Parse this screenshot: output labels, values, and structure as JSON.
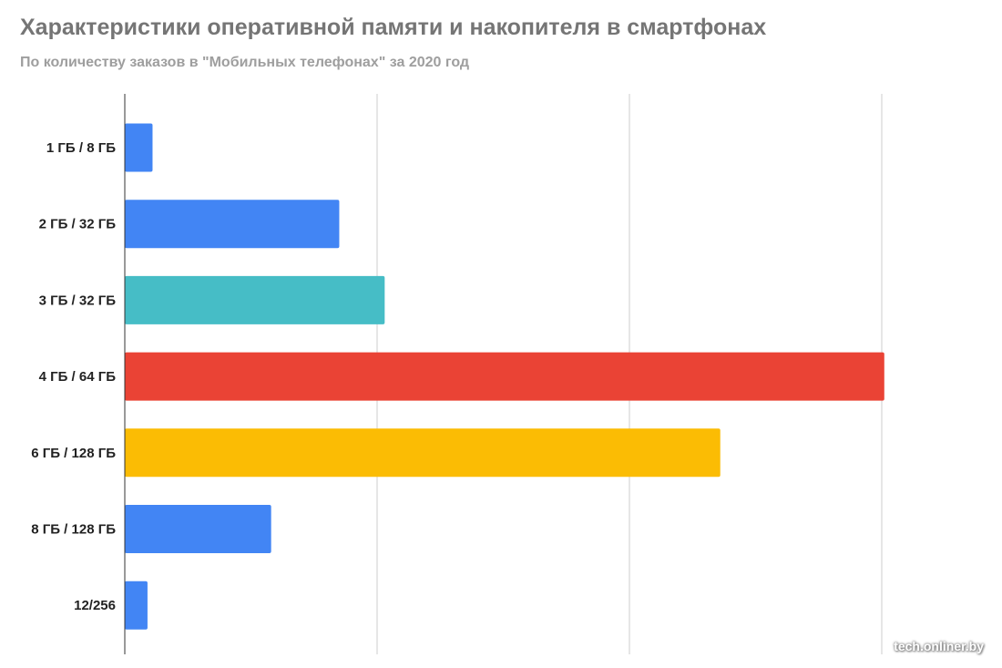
{
  "title": "Характеристики оперативной памяти и накопителя в смартфонах",
  "subtitle": "По количеству заказов в \"Мобильных телефонах\" за 2020 год",
  "watermark": "tech.onliner.by",
  "chart_data": {
    "type": "bar",
    "orientation": "horizontal",
    "categories": [
      "1 ГБ / 8 ГБ",
      "2 ГБ / 32 ГБ",
      "3 ГБ / 32 ГБ",
      "4 ГБ / 64 ГБ",
      "6 ГБ / 128 ГБ",
      "8 ГБ / 128 ГБ",
      "12/256"
    ],
    "values": [
      1.1,
      8.5,
      10.3,
      30.1,
      23.6,
      5.8,
      0.9
    ],
    "colors": [
      "#4285f4",
      "#4285f4",
      "#46bdc6",
      "#ea4335",
      "#fbbc04",
      "#4285f4",
      "#4285f4"
    ],
    "xlim": [
      0,
      30
    ],
    "gridlines": [
      10,
      20,
      30
    ],
    "grid": true,
    "xlabel": "",
    "ylabel": ""
  }
}
